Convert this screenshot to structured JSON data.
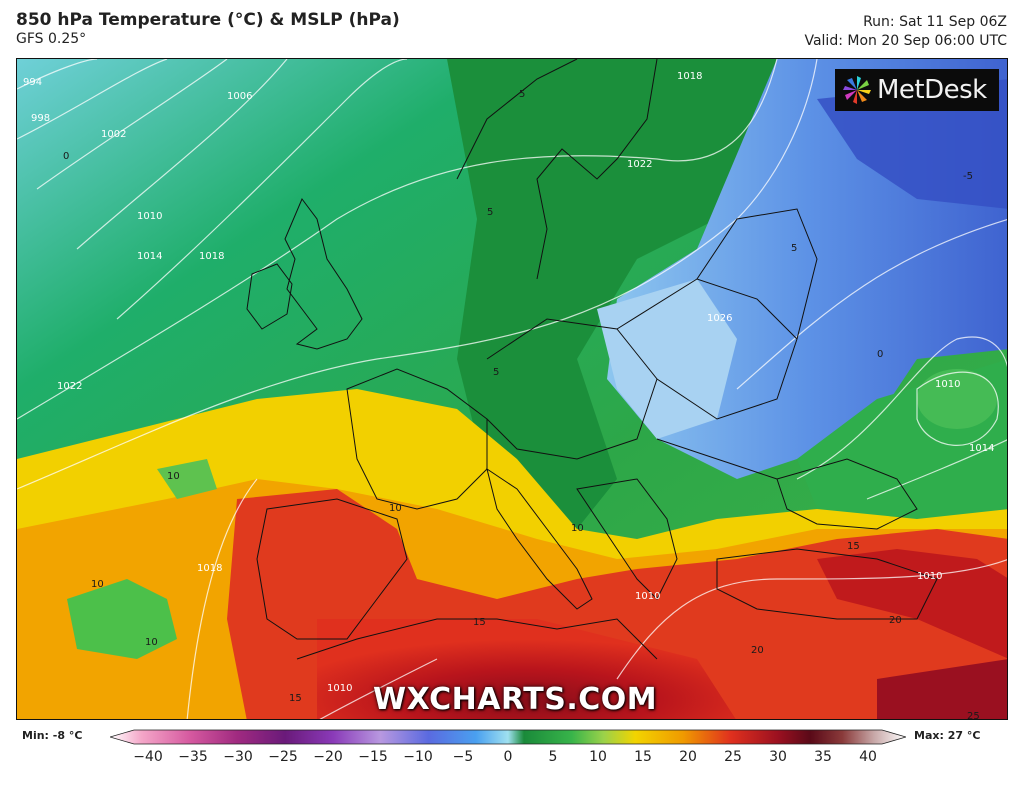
{
  "header": {
    "title": "850 hPa Temperature (°C) & MSLP (hPa)",
    "model": "GFS 0.25°",
    "run": "Run: Sat 11 Sep 06Z",
    "valid": "Valid: Mon 20 Sep 06:00 UTC"
  },
  "logo": {
    "text": "MetDesk"
  },
  "watermark": "WXCHARTS.COM",
  "legend": {
    "min_label": "Min: -8 °C",
    "max_label": "Max: 27 °C",
    "ticks": [
      "−40",
      "−35",
      "−30",
      "−25",
      "−20",
      "−15",
      "−10",
      "−5",
      "0",
      "5",
      "10",
      "15",
      "20",
      "25",
      "30",
      "35",
      "40"
    ]
  },
  "isobar_labels": [
    "994",
    "998",
    "1002",
    "1006",
    "1010",
    "1014",
    "1018",
    "1022",
    "1018",
    "1026",
    "1022",
    "1010",
    "1014",
    "1018",
    "1010",
    "1010",
    "1010"
  ],
  "temp_labels": [
    "0",
    "5",
    "5",
    "5",
    "5",
    "0",
    "10",
    "10",
    "10",
    "10",
    "10",
    "15",
    "15",
    "15",
    "20",
    "20",
    "25",
    "-5"
  ],
  "colors": {
    "ocean_cold": "#7fd6e0",
    "green_dark": "#1a8a3a",
    "green": "#33b04a",
    "green_light": "#5ec24f",
    "blue_cold": "#4f7fe0",
    "blue_light": "#9fc6ef",
    "yellow": "#f2d400",
    "orange": "#f0a000",
    "red": "#e0301e",
    "dark_red": "#8a0e1a"
  }
}
